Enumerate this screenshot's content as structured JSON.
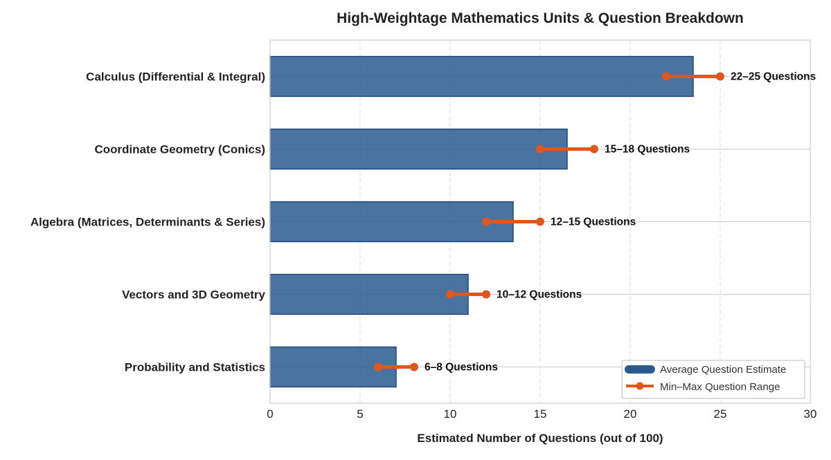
{
  "chart_data": {
    "type": "bar",
    "orientation": "horizontal",
    "title": "High-Weightage Mathematics Units & Question Breakdown",
    "xlabel": "Estimated Number of Questions (out of 100)",
    "ylabel": "",
    "xlim": [
      0,
      30
    ],
    "xticks": [
      0,
      5,
      10,
      15,
      20,
      25,
      30
    ],
    "grid": "vertical dashed",
    "legend_position": "bottom-right",
    "categories": [
      "Calculus (Differential & Integral)",
      "Coordinate Geometry (Conics)",
      "Algebra (Matrices, Determinants & Series)",
      "Vectors and 3D Geometry",
      "Probability and Statistics"
    ],
    "series": [
      {
        "name": "Average Question Estimate",
        "kind": "bar",
        "color": "#2b5a8f",
        "values": [
          23.5,
          16.5,
          13.5,
          11,
          7
        ]
      },
      {
        "name": "Min–Max Question Range",
        "kind": "range",
        "color": "#e0561b",
        "min": [
          22,
          15,
          12,
          10,
          6
        ],
        "max": [
          25,
          18,
          15,
          12,
          8
        ]
      }
    ],
    "annotations": [
      "22–25 Questions",
      "15–18 Questions",
      "12–15 Questions",
      "10–12 Questions",
      "6–8 Questions"
    ]
  }
}
